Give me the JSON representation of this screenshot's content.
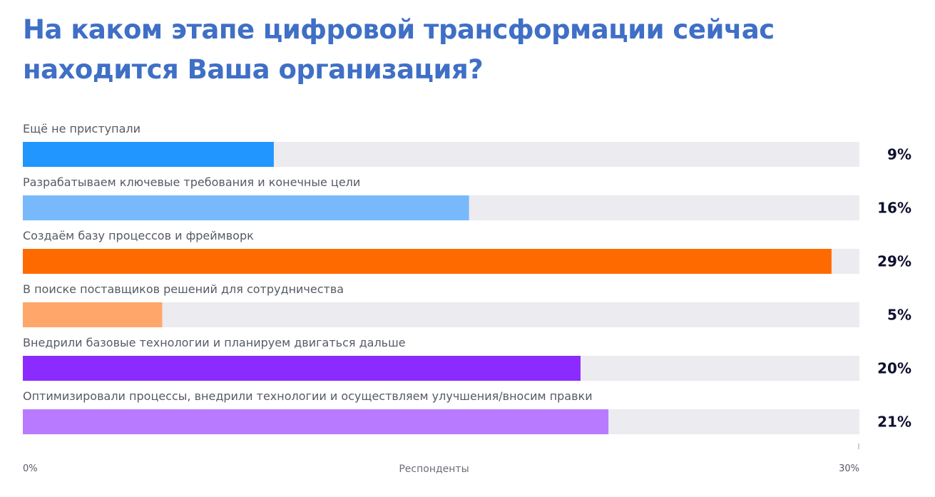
{
  "chart_data": {
    "type": "bar",
    "orientation": "horizontal",
    "title": "На каком этапе цифровой трансформации сейчас находится Ваша организация?",
    "categories": [
      "Ещё не приступали",
      "Разрабатываем ключевые требования и конечные цели",
      "Создаём базу процессов и фреймворк",
      "В поиске поставщиков решений для сотрудничества",
      "Внедрили базовые технологии и планируем двигаться дальше",
      "Оптимизировали процессы, внедрили технологии и осуществляем улучшения/вносим правки"
    ],
    "values": [
      9,
      16,
      29,
      5,
      20,
      21
    ],
    "value_labels": [
      "9%",
      "16%",
      "29%",
      "5%",
      "20%",
      "21%"
    ],
    "colors": [
      "#2196ff",
      "#78b9fb",
      "#ff6a00",
      "#ffa76b",
      "#8b2bff",
      "#b87bff"
    ],
    "track_color": "#ebebf0",
    "xlabel": "Респонденты",
    "ylabel": "",
    "xlim": [
      0,
      30
    ],
    "x_tick_labels": [
      "0%",
      "30%"
    ],
    "grid": false,
    "legend": "none"
  }
}
